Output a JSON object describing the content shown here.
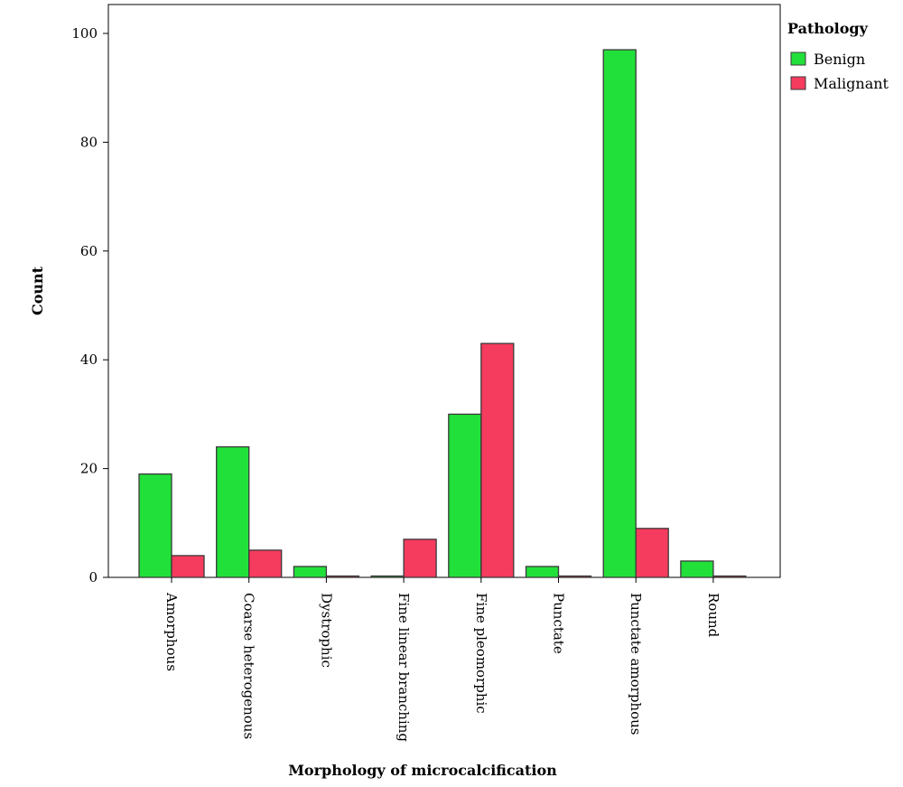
{
  "chart_data": {
    "type": "bar",
    "title": "",
    "xlabel": "Morphology of microcalcification",
    "ylabel": "Count",
    "ylim": [
      0,
      105
    ],
    "yticks": [
      0,
      20,
      40,
      60,
      80,
      100
    ],
    "categories": [
      "Amorphous",
      "Coarse heterogenous",
      "Dystrophic",
      "Fine linear branching",
      "Fine pleomorphic",
      "Punctate",
      "Punctate amorphous",
      "Round"
    ],
    "series": [
      {
        "name": "Benign",
        "color": "#22e03a",
        "values": [
          19,
          24,
          2,
          0,
          30,
          2,
          97,
          3
        ]
      },
      {
        "name": "Malignant",
        "color": "#f53b5e",
        "values": [
          4,
          5,
          0,
          7,
          43,
          0,
          9,
          0
        ]
      }
    ],
    "legend": {
      "title": "Pathology",
      "placement": "right"
    },
    "grid": false
  }
}
